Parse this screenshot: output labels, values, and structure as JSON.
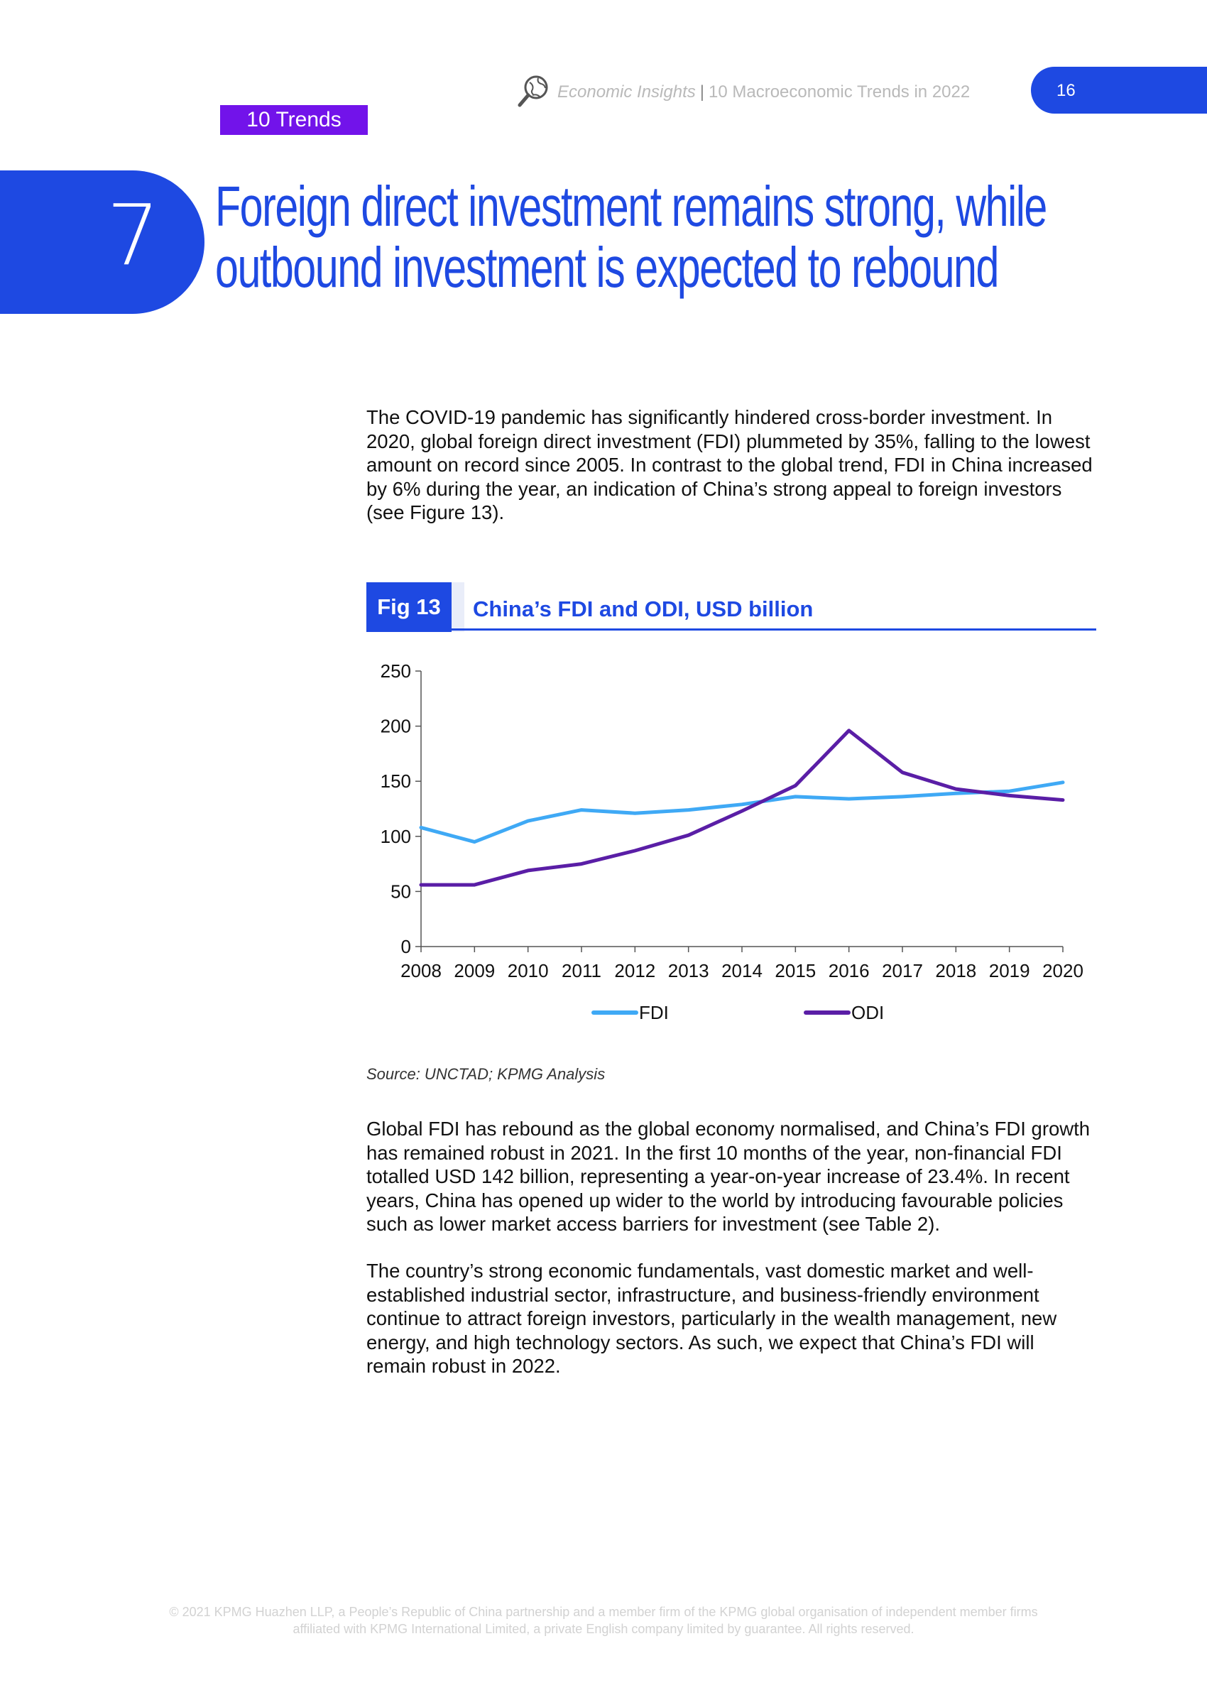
{
  "header": {
    "logo_icon": "magnifier-globe-icon",
    "publication": "Economic Insights",
    "separator": "|",
    "report": "10 Macroeconomic Trends in 2022",
    "page_number": "16",
    "section_tag": "10 Trends"
  },
  "section": {
    "number": "7",
    "title_line1": "Foreign direct investment remains strong, while",
    "title_line2": "outbound investment is expected to rebound"
  },
  "body": {
    "paragraph1": "The COVID-19 pandemic has significantly hindered cross-border investment. In 2020, global foreign direct investment (FDI) plummeted by 35%, falling to the lowest amount on record since 2005. In contrast to the global trend, FDI in China increased by 6% during the year, an indication of China’s strong appeal to foreign investors (see Figure 13).",
    "paragraph2": "Global FDI has rebound as the global economy normalised, and China’s FDI growth has remained robust in 2021. In the first 10 months of the year, non-financial FDI totalled USD 142 billion, representing a year-on-year increase of 23.4%. In recent years, China has opened up wider to the world by introducing favourable policies such as lower market access barriers for investment (see Table 2).",
    "paragraph3": "The country’s strong economic fundamentals, vast domestic market and well-established industrial sector, infrastructure, and business-friendly environment continue to attract foreign investors, particularly in the wealth management, new energy, and high technology sectors. As such, we expect that China’s FDI will remain robust in 2022."
  },
  "figure": {
    "label": "Fig 13",
    "title": "China’s FDI and ODI,  USD billion",
    "source": "Source: UNCTAD;  KPMG Analysis"
  },
  "chart_data": {
    "type": "line",
    "title": "China’s FDI and ODI,  USD billion",
    "x": [
      "2008",
      "2009",
      "2010",
      "2011",
      "2012",
      "2013",
      "2014",
      "2015",
      "2016",
      "2017",
      "2018",
      "2019",
      "2020"
    ],
    "series": [
      {
        "name": "FDI",
        "color": "#3fa9f5",
        "values": [
          108,
          95,
          114,
          124,
          121,
          124,
          129,
          136,
          134,
          136,
          139,
          141,
          149
        ]
      },
      {
        "name": "ODI",
        "color": "#5a1ea6",
        "values": [
          56,
          56,
          69,
          75,
          87,
          101,
          123,
          146,
          196,
          158,
          143,
          137,
          133
        ]
      }
    ],
    "ylim": [
      0,
      250
    ],
    "yticks": [
      0,
      50,
      100,
      150,
      200,
      250
    ],
    "xlabel": "",
    "ylabel": "",
    "grid": false,
    "legend": "bottom-center"
  },
  "footer": {
    "line1": "© 2021 KPMG Huazhen LLP, a People’s Republic of China partnership and a member firm of the KPMG global organisation of independent member firms",
    "line2": "affiliated with KPMG International Limited, a private English company limited by guarantee. All rights reserved."
  }
}
